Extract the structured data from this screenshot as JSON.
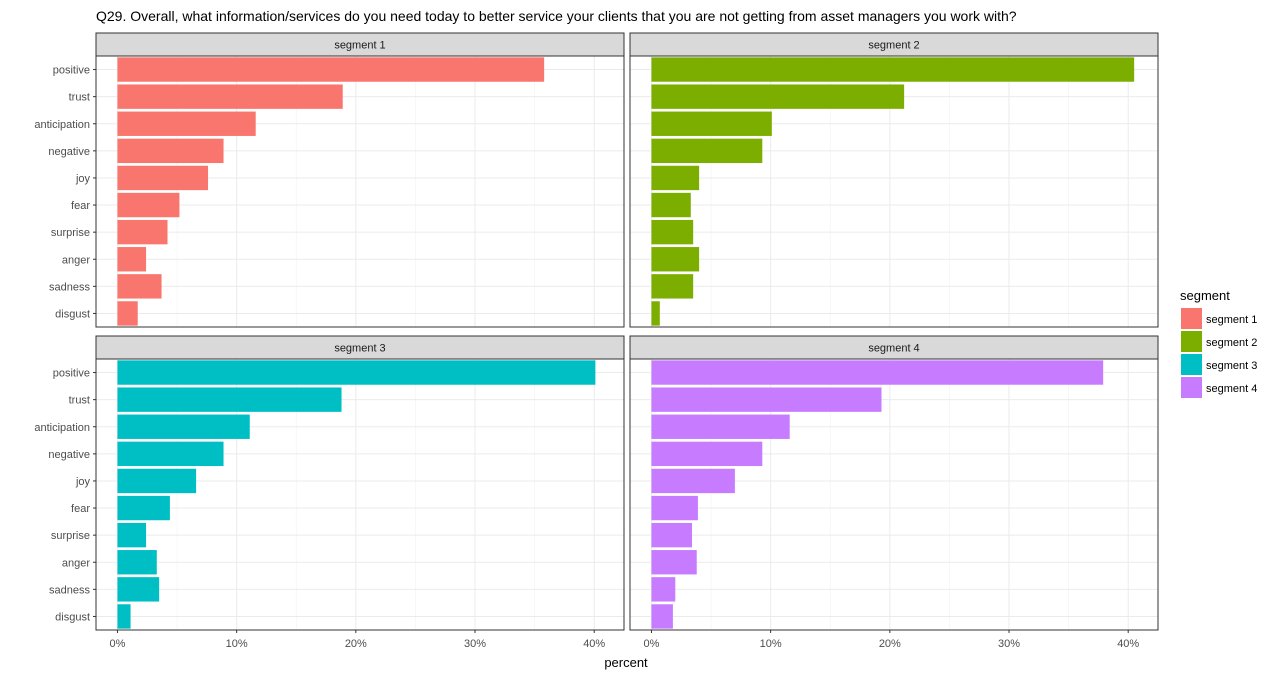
{
  "chart_data": {
    "type": "bar",
    "orientation": "horizontal",
    "title": "Q29. Overall, what information/services do you need today to better service your clients that you are not getting from asset managers you work with?",
    "xlabel": "percent",
    "ylabel": "",
    "categories": [
      "positive",
      "trust",
      "anticipation",
      "negative",
      "joy",
      "fear",
      "surprise",
      "anger",
      "sadness",
      "disgust"
    ],
    "xlim": [
      -1.8,
      42.5
    ],
    "xticks": [
      0,
      10,
      20,
      30,
      40
    ],
    "xtick_labels": [
      "0%",
      "10%",
      "20%",
      "30%",
      "40%"
    ],
    "grid": true,
    "legend": {
      "title": "segment",
      "position": "right"
    },
    "series": [
      {
        "name": "segment 1",
        "color": "#F8766D",
        "values": [
          35.8,
          18.9,
          11.6,
          8.9,
          7.6,
          5.2,
          4.2,
          2.4,
          3.7,
          1.7
        ]
      },
      {
        "name": "segment 2",
        "color": "#7CAE00",
        "values": [
          40.5,
          21.2,
          10.1,
          9.3,
          4.0,
          3.3,
          3.5,
          4.0,
          3.5,
          0.7
        ]
      },
      {
        "name": "segment 3",
        "color": "#00BFC4",
        "values": [
          40.1,
          18.8,
          11.1,
          8.9,
          6.6,
          4.4,
          2.4,
          3.3,
          3.5,
          1.1
        ]
      },
      {
        "name": "segment 4",
        "color": "#C77CFF",
        "values": [
          37.9,
          19.3,
          11.6,
          9.3,
          7.0,
          3.9,
          3.4,
          3.8,
          2.0,
          1.8
        ]
      }
    ]
  }
}
